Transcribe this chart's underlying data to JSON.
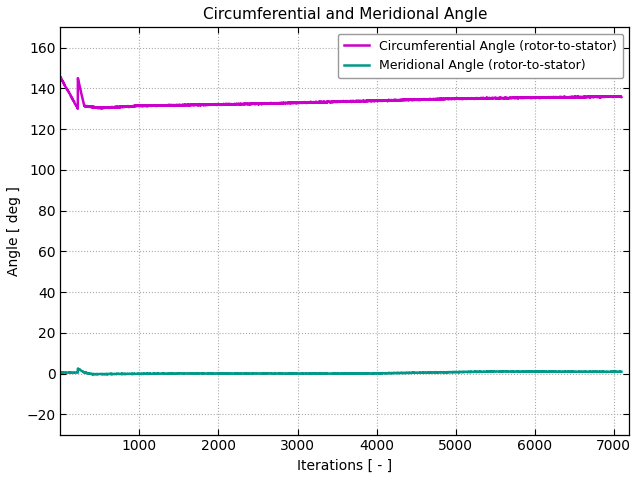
{
  "title": "Circumferential and Meridional Angle",
  "xlabel": "Iterations [ - ]",
  "ylabel": "Angle [ deg ]",
  "xlim": [
    0,
    7200
  ],
  "ylim": [
    -30,
    170
  ],
  "yticks": [
    -20,
    0,
    20,
    40,
    60,
    80,
    100,
    120,
    140,
    160
  ],
  "xticks": [
    1000,
    2000,
    3000,
    4000,
    5000,
    6000,
    7000
  ],
  "circ_color": "#cc00cc",
  "merid_color": "#009988",
  "circ_label": "Circumferential Angle (rotor-to-stator)",
  "merid_label": "Meridional Angle (rotor-to-stator)",
  "bg_color": "#ffffff",
  "grid_color": "#aaaaaa",
  "line_width": 1.8,
  "title_fontsize": 11,
  "label_fontsize": 10,
  "tick_fontsize": 10,
  "legend_fontsize": 9
}
